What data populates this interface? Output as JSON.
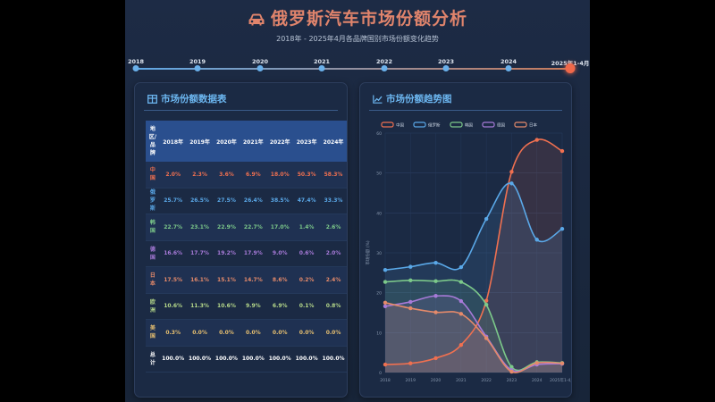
{
  "header": {
    "title": "俄罗斯汽车市场份额分析",
    "subtitle": "2018年 - 2025年4月各品牌国别市场份额变化趋势"
  },
  "timeline": [
    "2018",
    "2019",
    "2020",
    "2021",
    "2022",
    "2023",
    "2024",
    "2025年1-4月"
  ],
  "timeline_active": 7,
  "table_panel": {
    "title": "市场份额数据表"
  },
  "table": {
    "header_region": "地区/品牌",
    "columns": [
      "2018年",
      "2019年",
      "2020年",
      "2021年",
      "2022年",
      "2023年",
      "2024年"
    ],
    "rows": [
      {
        "name": "中国",
        "color": "#f07050",
        "values": [
          "2.0%",
          "2.3%",
          "3.6%",
          "6.9%",
          "18.0%",
          "50.3%",
          "58.3%"
        ]
      },
      {
        "name": "俄罗斯",
        "color": "#5aa8e8",
        "values": [
          "25.7%",
          "26.5%",
          "27.5%",
          "26.4%",
          "38.5%",
          "47.4%",
          "33.3%"
        ]
      },
      {
        "name": "韩国",
        "color": "#7cc98a",
        "values": [
          "22.7%",
          "23.1%",
          "22.9%",
          "22.7%",
          "17.0%",
          "1.4%",
          "2.6%"
        ]
      },
      {
        "name": "德国",
        "color": "#a77ad8",
        "values": [
          "16.6%",
          "17.7%",
          "19.2%",
          "17.9%",
          "9.0%",
          "0.6%",
          "2.0%"
        ]
      },
      {
        "name": "日本",
        "color": "#e58a6a",
        "values": [
          "17.5%",
          "16.1%",
          "15.1%",
          "14.7%",
          "8.6%",
          "0.2%",
          "2.4%"
        ]
      },
      {
        "name": "欧洲",
        "color": "#b6d98a",
        "values": [
          "10.6%",
          "11.3%",
          "10.6%",
          "9.9%",
          "6.9%",
          "0.1%",
          "0.8%"
        ]
      },
      {
        "name": "美国",
        "color": "#e8c070",
        "values": [
          "0.3%",
          "0.0%",
          "0.0%",
          "0.0%",
          "0.0%",
          "0.0%",
          "0.0%"
        ]
      },
      {
        "name": "总计",
        "color": "#ffffff",
        "values": [
          "100.0%",
          "100.0%",
          "100.0%",
          "100.0%",
          "100.0%",
          "100.0%",
          "100.0%"
        ]
      }
    ]
  },
  "chart_panel": {
    "title": "市场份额趋势图"
  },
  "chart_data": {
    "type": "line",
    "title": "市场份额趋势图",
    "categories": [
      "2018",
      "2019",
      "2020",
      "2021",
      "2022",
      "2023",
      "2024",
      "2025年1-4月"
    ],
    "ylabel": "市场份额 (%)",
    "ylim": [
      0,
      60
    ],
    "yticks": [
      0,
      10,
      20,
      30,
      40,
      50,
      60
    ],
    "legend_position": "top",
    "grid": true,
    "series": [
      {
        "name": "中国",
        "color": "#f07050",
        "values": [
          2.0,
          2.3,
          3.6,
          6.9,
          18.0,
          50.3,
          58.3,
          55.5
        ]
      },
      {
        "name": "俄罗斯",
        "color": "#5aa8e8",
        "values": [
          25.7,
          26.5,
          27.5,
          26.4,
          38.5,
          47.4,
          33.3,
          36.0
        ]
      },
      {
        "name": "韩国",
        "color": "#7cc98a",
        "values": [
          22.7,
          23.1,
          22.9,
          22.7,
          17.0,
          1.4,
          2.6,
          2.4
        ]
      },
      {
        "name": "德国",
        "color": "#a77ad8",
        "values": [
          16.6,
          17.7,
          19.2,
          17.9,
          9.0,
          0.6,
          2.0,
          2.2
        ]
      },
      {
        "name": "日本",
        "color": "#e58a6a",
        "values": [
          17.5,
          16.1,
          15.1,
          14.7,
          8.6,
          0.2,
          2.4,
          2.3
        ]
      }
    ]
  }
}
